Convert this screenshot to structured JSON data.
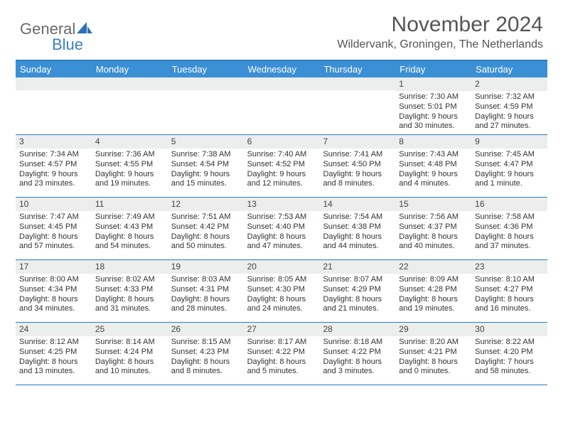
{
  "brand": {
    "general": "General",
    "blue": "Blue"
  },
  "title": "November 2024",
  "location": "Wildervank, Groningen, The Netherlands",
  "colors": {
    "header_bg": "#3b8fd4",
    "border": "#2b7bbf",
    "daynum_bg": "#eceded",
    "logo_blue": "#3b7fc4",
    "logo_gray": "#6a6a6a"
  },
  "day_headers": [
    "Sunday",
    "Monday",
    "Tuesday",
    "Wednesday",
    "Thursday",
    "Friday",
    "Saturday"
  ],
  "weeks": [
    [
      {
        "n": "",
        "sunrise": "",
        "sunset": "",
        "daylight": ""
      },
      {
        "n": "",
        "sunrise": "",
        "sunset": "",
        "daylight": ""
      },
      {
        "n": "",
        "sunrise": "",
        "sunset": "",
        "daylight": ""
      },
      {
        "n": "",
        "sunrise": "",
        "sunset": "",
        "daylight": ""
      },
      {
        "n": "",
        "sunrise": "",
        "sunset": "",
        "daylight": ""
      },
      {
        "n": "1",
        "sunrise": "Sunrise: 7:30 AM",
        "sunset": "Sunset: 5:01 PM",
        "daylight": "Daylight: 9 hours and 30 minutes."
      },
      {
        "n": "2",
        "sunrise": "Sunrise: 7:32 AM",
        "sunset": "Sunset: 4:59 PM",
        "daylight": "Daylight: 9 hours and 27 minutes."
      }
    ],
    [
      {
        "n": "3",
        "sunrise": "Sunrise: 7:34 AM",
        "sunset": "Sunset: 4:57 PM",
        "daylight": "Daylight: 9 hours and 23 minutes."
      },
      {
        "n": "4",
        "sunrise": "Sunrise: 7:36 AM",
        "sunset": "Sunset: 4:55 PM",
        "daylight": "Daylight: 9 hours and 19 minutes."
      },
      {
        "n": "5",
        "sunrise": "Sunrise: 7:38 AM",
        "sunset": "Sunset: 4:54 PM",
        "daylight": "Daylight: 9 hours and 15 minutes."
      },
      {
        "n": "6",
        "sunrise": "Sunrise: 7:40 AM",
        "sunset": "Sunset: 4:52 PM",
        "daylight": "Daylight: 9 hours and 12 minutes."
      },
      {
        "n": "7",
        "sunrise": "Sunrise: 7:41 AM",
        "sunset": "Sunset: 4:50 PM",
        "daylight": "Daylight: 9 hours and 8 minutes."
      },
      {
        "n": "8",
        "sunrise": "Sunrise: 7:43 AM",
        "sunset": "Sunset: 4:48 PM",
        "daylight": "Daylight: 9 hours and 4 minutes."
      },
      {
        "n": "9",
        "sunrise": "Sunrise: 7:45 AM",
        "sunset": "Sunset: 4:47 PM",
        "daylight": "Daylight: 9 hours and 1 minute."
      }
    ],
    [
      {
        "n": "10",
        "sunrise": "Sunrise: 7:47 AM",
        "sunset": "Sunset: 4:45 PM",
        "daylight": "Daylight: 8 hours and 57 minutes."
      },
      {
        "n": "11",
        "sunrise": "Sunrise: 7:49 AM",
        "sunset": "Sunset: 4:43 PM",
        "daylight": "Daylight: 8 hours and 54 minutes."
      },
      {
        "n": "12",
        "sunrise": "Sunrise: 7:51 AM",
        "sunset": "Sunset: 4:42 PM",
        "daylight": "Daylight: 8 hours and 50 minutes."
      },
      {
        "n": "13",
        "sunrise": "Sunrise: 7:53 AM",
        "sunset": "Sunset: 4:40 PM",
        "daylight": "Daylight: 8 hours and 47 minutes."
      },
      {
        "n": "14",
        "sunrise": "Sunrise: 7:54 AM",
        "sunset": "Sunset: 4:38 PM",
        "daylight": "Daylight: 8 hours and 44 minutes."
      },
      {
        "n": "15",
        "sunrise": "Sunrise: 7:56 AM",
        "sunset": "Sunset: 4:37 PM",
        "daylight": "Daylight: 8 hours and 40 minutes."
      },
      {
        "n": "16",
        "sunrise": "Sunrise: 7:58 AM",
        "sunset": "Sunset: 4:36 PM",
        "daylight": "Daylight: 8 hours and 37 minutes."
      }
    ],
    [
      {
        "n": "17",
        "sunrise": "Sunrise: 8:00 AM",
        "sunset": "Sunset: 4:34 PM",
        "daylight": "Daylight: 8 hours and 34 minutes."
      },
      {
        "n": "18",
        "sunrise": "Sunrise: 8:02 AM",
        "sunset": "Sunset: 4:33 PM",
        "daylight": "Daylight: 8 hours and 31 minutes."
      },
      {
        "n": "19",
        "sunrise": "Sunrise: 8:03 AM",
        "sunset": "Sunset: 4:31 PM",
        "daylight": "Daylight: 8 hours and 28 minutes."
      },
      {
        "n": "20",
        "sunrise": "Sunrise: 8:05 AM",
        "sunset": "Sunset: 4:30 PM",
        "daylight": "Daylight: 8 hours and 24 minutes."
      },
      {
        "n": "21",
        "sunrise": "Sunrise: 8:07 AM",
        "sunset": "Sunset: 4:29 PM",
        "daylight": "Daylight: 8 hours and 21 minutes."
      },
      {
        "n": "22",
        "sunrise": "Sunrise: 8:09 AM",
        "sunset": "Sunset: 4:28 PM",
        "daylight": "Daylight: 8 hours and 19 minutes."
      },
      {
        "n": "23",
        "sunrise": "Sunrise: 8:10 AM",
        "sunset": "Sunset: 4:27 PM",
        "daylight": "Daylight: 8 hours and 16 minutes."
      }
    ],
    [
      {
        "n": "24",
        "sunrise": "Sunrise: 8:12 AM",
        "sunset": "Sunset: 4:25 PM",
        "daylight": "Daylight: 8 hours and 13 minutes."
      },
      {
        "n": "25",
        "sunrise": "Sunrise: 8:14 AM",
        "sunset": "Sunset: 4:24 PM",
        "daylight": "Daylight: 8 hours and 10 minutes."
      },
      {
        "n": "26",
        "sunrise": "Sunrise: 8:15 AM",
        "sunset": "Sunset: 4:23 PM",
        "daylight": "Daylight: 8 hours and 8 minutes."
      },
      {
        "n": "27",
        "sunrise": "Sunrise: 8:17 AM",
        "sunset": "Sunset: 4:22 PM",
        "daylight": "Daylight: 8 hours and 5 minutes."
      },
      {
        "n": "28",
        "sunrise": "Sunrise: 8:18 AM",
        "sunset": "Sunset: 4:22 PM",
        "daylight": "Daylight: 8 hours and 3 minutes."
      },
      {
        "n": "29",
        "sunrise": "Sunrise: 8:20 AM",
        "sunset": "Sunset: 4:21 PM",
        "daylight": "Daylight: 8 hours and 0 minutes."
      },
      {
        "n": "30",
        "sunrise": "Sunrise: 8:22 AM",
        "sunset": "Sunset: 4:20 PM",
        "daylight": "Daylight: 7 hours and 58 minutes."
      }
    ]
  ]
}
